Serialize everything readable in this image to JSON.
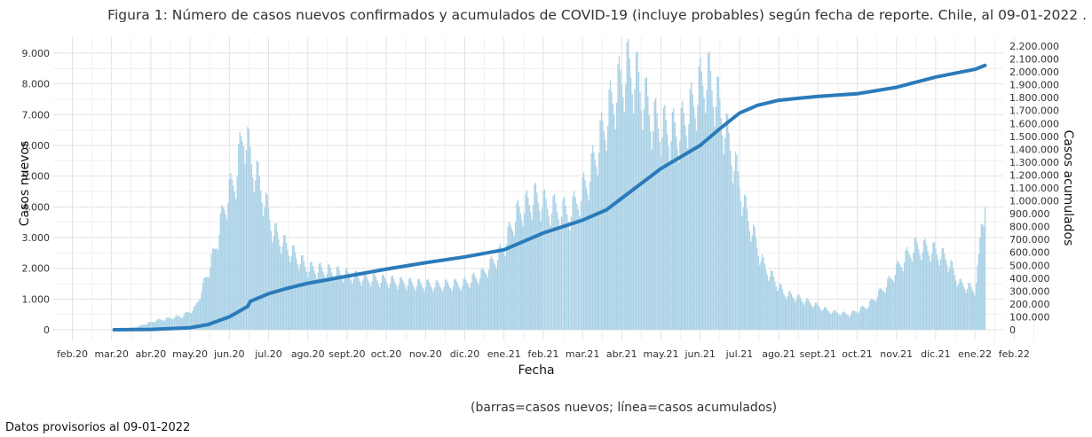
{
  "title": "Figura 1: Número de casos nuevos confirmados y acumulados de COVID-19 (incluye probables) según fecha de reporte. Chile, al 09-01-2022 .",
  "caption": "(barras=casos nuevos; línea=casos acumulados)",
  "footnote": "Datos provisorios al 09-01-2022",
  "colors": {
    "bars": "#a9d1e6",
    "line": "#2b7bba",
    "grid": "#e3e3e3",
    "plot_bg": "#ffffff"
  },
  "chart_data": {
    "type": "bar+line",
    "xlabel": "Fecha",
    "ylabel_left": "Casos nuevos",
    "ylabel_right": "Casos acumulados",
    "x_ticks": [
      "feb.20",
      "mar.20",
      "abr.20",
      "may.20",
      "jun.20",
      "jul.20",
      "ago.20",
      "sept.20",
      "oct.20",
      "nov.20",
      "dic.20",
      "ene.21",
      "feb.21",
      "mar.21",
      "abr.21",
      "may.21",
      "jun.21",
      "jul.21",
      "ago.21",
      "sept.21",
      "oct.21",
      "nov.21",
      "dic.21",
      "ene.22",
      "feb.22"
    ],
    "y_left_ticks": [
      "0",
      "1.000",
      "2.000",
      "3.000",
      "4.000",
      "5.000",
      "6.000",
      "7.000",
      "8.000",
      "9.000"
    ],
    "y_right_ticks": [
      "0",
      "100.000",
      "200.000",
      "300.000",
      "400.000",
      "500.000",
      "600.000",
      "700.000",
      "800.000",
      "900.000",
      "1.000.000",
      "1.100.000",
      "1.200.000",
      "1.300.000",
      "1.400.000",
      "1.500.000",
      "1.600.000",
      "1.700.000",
      "1.800.000",
      "1.900.000",
      "2.000.000",
      "2.100.000",
      "2.200.000"
    ],
    "ylim_left": [
      0,
      9000
    ],
    "ylim_right": [
      0,
      2200000
    ],
    "grid": true,
    "series": [
      {
        "name": "casos nuevos",
        "type": "bar",
        "points": [
          [
            "2020-03-03",
            0
          ],
          [
            "2020-03-20",
            80
          ],
          [
            "2020-04-05",
            300
          ],
          [
            "2020-04-25",
            450
          ],
          [
            "2020-05-05",
            700
          ],
          [
            "2020-05-12",
            1500
          ],
          [
            "2020-05-20",
            2500
          ],
          [
            "2020-05-28",
            4000
          ],
          [
            "2020-06-06",
            5000
          ],
          [
            "2020-06-12",
            6500
          ],
          [
            "2020-06-18",
            5500
          ],
          [
            "2020-06-26",
            4500
          ],
          [
            "2020-07-05",
            3200
          ],
          [
            "2020-07-15",
            2700
          ],
          [
            "2020-08-01",
            2000
          ],
          [
            "2020-08-20",
            1900
          ],
          [
            "2020-09-10",
            1700
          ],
          [
            "2020-10-01",
            1600
          ],
          [
            "2020-10-20",
            1500
          ],
          [
            "2020-11-10",
            1450
          ],
          [
            "2020-11-30",
            1500
          ],
          [
            "2020-12-15",
            1800
          ],
          [
            "2020-12-31",
            2600
          ],
          [
            "2021-01-10",
            3700
          ],
          [
            "2021-01-25",
            4300
          ],
          [
            "2021-02-05",
            4000
          ],
          [
            "2021-02-20",
            3800
          ],
          [
            "2021-03-05",
            4800
          ],
          [
            "2021-03-15",
            6200
          ],
          [
            "2021-03-25",
            7500
          ],
          [
            "2021-04-05",
            8500
          ],
          [
            "2021-04-12",
            8200
          ],
          [
            "2021-04-25",
            6800
          ],
          [
            "2021-05-05",
            6500
          ],
          [
            "2021-05-15",
            6400
          ],
          [
            "2021-05-25",
            7200
          ],
          [
            "2021-06-05",
            8300
          ],
          [
            "2021-06-12",
            7800
          ],
          [
            "2021-06-25",
            5800
          ],
          [
            "2021-07-05",
            4000
          ],
          [
            "2021-07-20",
            2100
          ],
          [
            "2021-08-05",
            1200
          ],
          [
            "2021-08-25",
            900
          ],
          [
            "2021-09-10",
            600
          ],
          [
            "2021-09-25",
            500
          ],
          [
            "2021-10-10",
            800
          ],
          [
            "2021-10-25",
            1500
          ],
          [
            "2021-11-05",
            2200
          ],
          [
            "2021-11-15",
            2700
          ],
          [
            "2021-11-28",
            2600
          ],
          [
            "2021-12-10",
            2300
          ],
          [
            "2021-12-20",
            1500
          ],
          [
            "2022-01-01",
            1300
          ],
          [
            "2022-01-04",
            2200
          ],
          [
            "2022-01-06",
            3500
          ],
          [
            "2022-01-09",
            4200
          ]
        ]
      },
      {
        "name": "casos acumulados",
        "type": "line",
        "points": [
          [
            "2020-03-03",
            0
          ],
          [
            "2020-04-01",
            3000
          ],
          [
            "2020-05-01",
            16000
          ],
          [
            "2020-05-15",
            40000
          ],
          [
            "2020-06-01",
            100000
          ],
          [
            "2020-06-15",
            180000
          ],
          [
            "2020-06-17",
            220000
          ],
          [
            "2020-07-01",
            280000
          ],
          [
            "2020-07-15",
            320000
          ],
          [
            "2020-08-01",
            360000
          ],
          [
            "2020-08-15",
            385000
          ],
          [
            "2020-09-01",
            415000
          ],
          [
            "2020-10-01",
            470000
          ],
          [
            "2020-11-01",
            520000
          ],
          [
            "2020-12-01",
            565000
          ],
          [
            "2021-01-01",
            620000
          ],
          [
            "2021-02-01",
            750000
          ],
          [
            "2021-03-01",
            850000
          ],
          [
            "2021-03-20",
            930000
          ],
          [
            "2021-04-01",
            1020000
          ],
          [
            "2021-05-01",
            1250000
          ],
          [
            "2021-06-01",
            1430000
          ],
          [
            "2021-06-15",
            1550000
          ],
          [
            "2021-07-01",
            1680000
          ],
          [
            "2021-07-15",
            1740000
          ],
          [
            "2021-08-01",
            1780000
          ],
          [
            "2021-09-01",
            1810000
          ],
          [
            "2021-10-01",
            1830000
          ],
          [
            "2021-11-01",
            1880000
          ],
          [
            "2021-12-01",
            1960000
          ],
          [
            "2022-01-01",
            2020000
          ],
          [
            "2022-01-09",
            2050000
          ]
        ]
      }
    ]
  }
}
